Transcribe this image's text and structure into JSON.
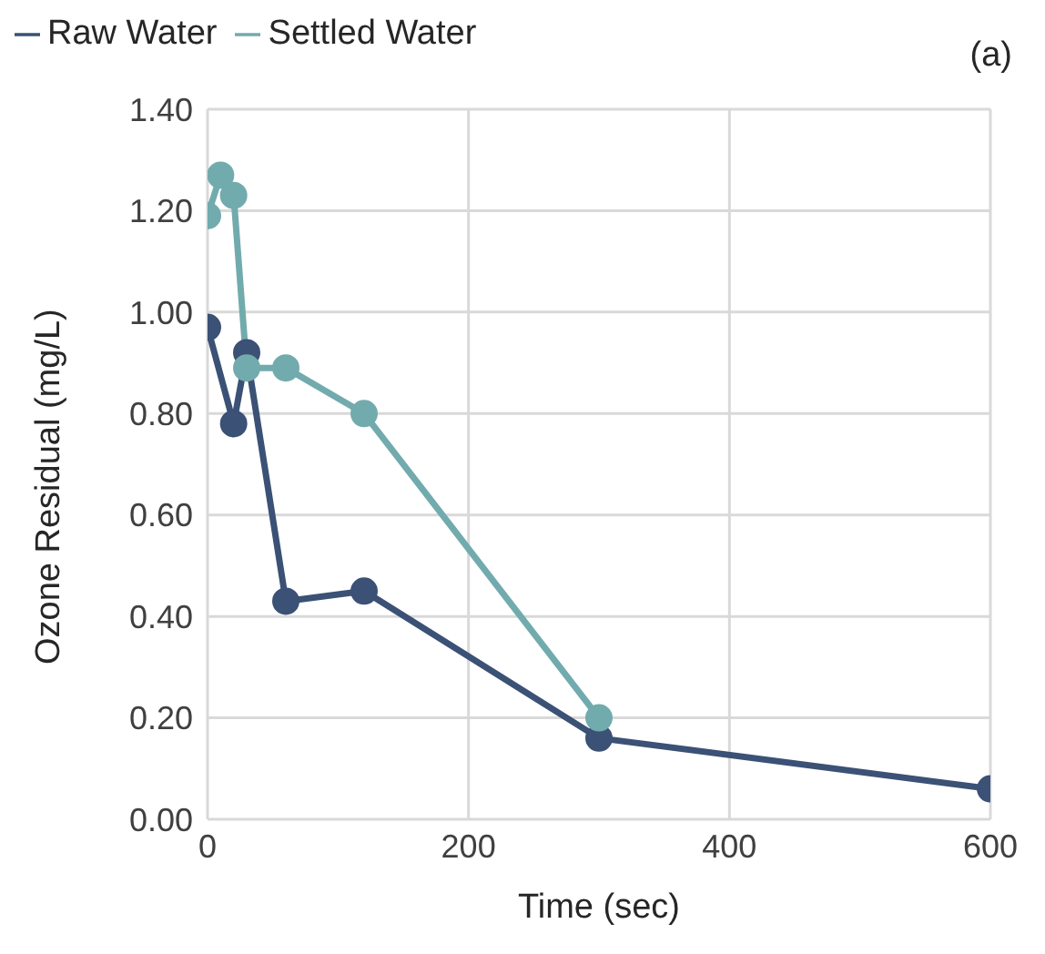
{
  "chart_data": {
    "type": "line",
    "xlabel": "Time (sec)",
    "ylabel": "Ozone Residual (mg/L)",
    "annotations": [
      "(a)"
    ],
    "xlim": [
      0,
      600
    ],
    "xticks": [
      0,
      200,
      400,
      600
    ],
    "ylim": [
      0,
      1.4
    ],
    "yticks": [
      {
        "value": 0,
        "label": "0.00"
      },
      {
        "value": 0.2,
        "label": "0.20"
      },
      {
        "value": 0.4,
        "label": "0.40"
      },
      {
        "value": 0.6,
        "label": "0.60"
      },
      {
        "value": 0.8,
        "label": "0.80"
      },
      {
        "value": 1,
        "label": "1.00"
      },
      {
        "value": 1.2,
        "label": "1.20"
      },
      {
        "value": 1.4,
        "label": "1.40"
      }
    ],
    "grid": true,
    "legend": "top left",
    "marker": "circle",
    "line_style": "solid",
    "series": [
      {
        "name": "Raw Water",
        "color": "#3b5175",
        "x": [
          0,
          20,
          30,
          60,
          120,
          300,
          600
        ],
        "values": [
          0.97,
          0.78,
          0.92,
          0.43,
          0.45,
          0.16,
          0.06
        ]
      },
      {
        "name": "Settled Water",
        "color": "#72abad",
        "x": [
          0,
          10,
          20,
          30,
          60,
          120,
          300
        ],
        "values": [
          1.19,
          1.27,
          1.23,
          0.89,
          0.89,
          0.8,
          0.2
        ]
      }
    ]
  }
}
